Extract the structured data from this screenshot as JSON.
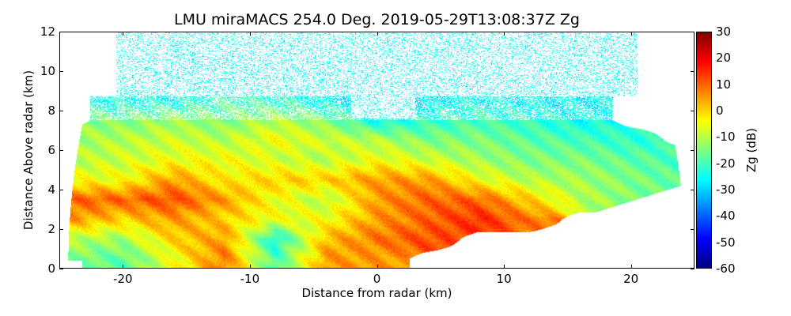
{
  "title": "LMU miraMACS 254.0 Deg. 2019-05-29T13:08:37Z  Zg",
  "chart_data": {
    "type": "heatmap",
    "title": "LMU miraMACS 254.0 Deg. 2019-05-29T13:08:37Z  Zg",
    "xlabel": "Distance from radar (km)",
    "ylabel": "Distance Above radar  (km)",
    "colorbar_label": "Zg (dB)",
    "colormap": "jet",
    "xlim": [
      -25,
      25
    ],
    "ylim": [
      0,
      12
    ],
    "clim": [
      -60,
      30
    ],
    "x_ticks": [
      "-20",
      "-10",
      "0",
      "10",
      "20"
    ],
    "y_ticks": [
      "0",
      "2",
      "4",
      "6",
      "8",
      "10",
      "12"
    ],
    "colorbar_ticks": [
      "30",
      "20",
      "10",
      "0",
      "-10",
      "-20",
      "-30",
      "-40",
      "-50",
      "-60"
    ],
    "grid_x_km": [
      -24,
      -20,
      -16,
      -12,
      -8,
      -4,
      0,
      4,
      8,
      12,
      16,
      20,
      24
    ],
    "grid_z_km": [
      0.5,
      1.5,
      2.5,
      3.5,
      4.5,
      5.5,
      6.5,
      7.5,
      8.5
    ],
    "values_dB": [
      [
        -15,
        -18,
        -5,
        8,
        -20,
        5,
        5,
        null,
        null,
        null,
        null,
        null,
        null
      ],
      [
        -10,
        -12,
        0,
        5,
        -25,
        2,
        8,
        12,
        null,
        null,
        null,
        null,
        null
      ],
      [
        5,
        0,
        5,
        0,
        -5,
        -5,
        5,
        10,
        15,
        8,
        null,
        null,
        null
      ],
      [
        10,
        10,
        12,
        5,
        -5,
        -10,
        5,
        10,
        10,
        0,
        -10,
        -15,
        null
      ],
      [
        -5,
        -5,
        5,
        -3,
        0,
        0,
        5,
        5,
        -5,
        -10,
        -12,
        -15,
        -18
      ],
      [
        -10,
        -8,
        -5,
        -5,
        -8,
        -10,
        -5,
        -8,
        -12,
        -15,
        -15,
        -18,
        -20
      ],
      [
        -12,
        -10,
        -8,
        -10,
        -5,
        -8,
        -10,
        -15,
        -15,
        -18,
        -20,
        -22,
        null
      ],
      [
        null,
        -15,
        -12,
        -15,
        -10,
        -15,
        -25,
        -22,
        -20,
        -22,
        -25,
        null,
        null
      ],
      [
        null,
        -25,
        -25,
        -20,
        -22,
        -27,
        -30,
        -28,
        -25,
        -27,
        -27,
        null,
        null
      ]
    ],
    "upper_speckle_dB": -28
  }
}
